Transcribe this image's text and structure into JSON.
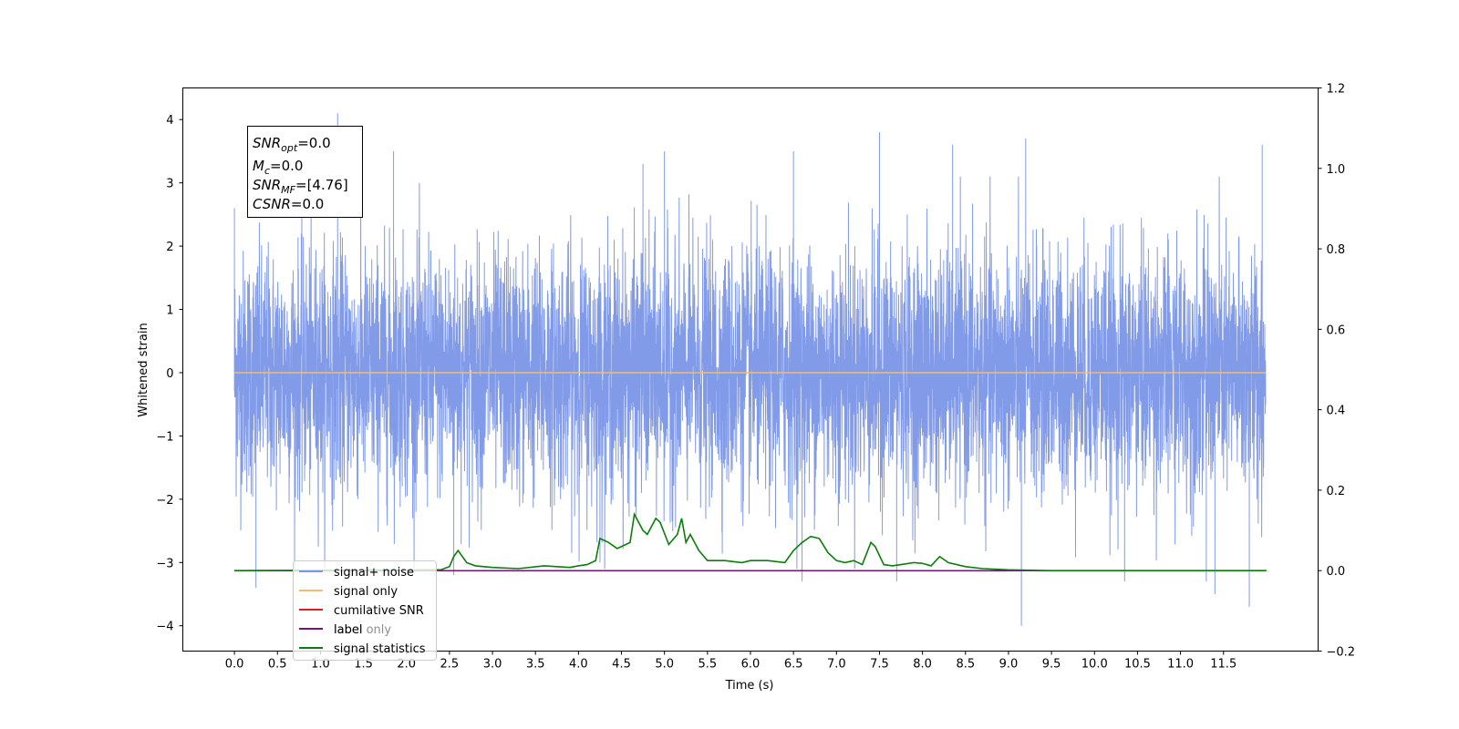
{
  "chart_data": {
    "type": "line",
    "xlabel": "Time (s)",
    "ylabel": "Whitened strain",
    "xlim": [
      -0.6,
      12.6
    ],
    "ylim": [
      -4.4,
      4.5
    ],
    "y2lim": [
      -0.2,
      1.2
    ],
    "xticks": [
      0.0,
      0.5,
      1.0,
      1.5,
      2.0,
      2.5,
      3.0,
      3.5,
      4.0,
      4.5,
      5.0,
      5.5,
      6.0,
      6.5,
      7.0,
      7.5,
      8.0,
      8.5,
      9.0,
      9.5,
      10.0,
      10.5,
      11.0,
      11.5
    ],
    "xtick_labels": [
      "0.0",
      "0.5",
      "1.0",
      "1.5",
      "2.0",
      "2.5",
      "3.0",
      "3.5",
      "4.0",
      "4.5",
      "5.0",
      "5.5",
      "6.0",
      "6.5",
      "7.0",
      "7.5",
      "8.0",
      "8.5",
      "9.0",
      "9.5",
      "10.0",
      "10.5",
      "11.0",
      "11.5"
    ],
    "yticks": [
      -4,
      -3,
      -2,
      -1,
      0,
      1,
      2,
      3,
      4
    ],
    "ytick_labels": [
      "−4",
      "−3",
      "−2",
      "−1",
      "0",
      "1",
      "2",
      "3",
      "4"
    ],
    "y2ticks": [
      -0.2,
      0.0,
      0.2,
      0.4,
      0.6,
      0.8,
      1.0,
      1.2
    ],
    "y2tick_labels": [
      "−0.2",
      "0.0",
      "0.2",
      "0.4",
      "0.6",
      "0.8",
      "1.0",
      "1.2"
    ],
    "grid": false,
    "legend_position": "lower-left",
    "annotation": {
      "lines": [
        {
          "sym": "SNR",
          "sub": "opt",
          "value": "=0.0"
        },
        {
          "sym": "M",
          "sub": "c",
          "value": "=0.0"
        },
        {
          "sym": "SNR",
          "sub": "MF",
          "value": "=[4.76]"
        },
        {
          "sym": "CSNR",
          "sub": "",
          "value": "=0.0"
        }
      ]
    },
    "series": [
      {
        "name": "signal+ noise",
        "axis": "left",
        "color": "#7b96e8",
        "kind": "noise",
        "x_range": [
          0.0,
          11.99
        ],
        "spikes": [
          [
            0.0,
            2.6
          ],
          [
            1.2,
            4.1
          ],
          [
            0.25,
            -3.4
          ],
          [
            9.15,
            -4.0
          ],
          [
            11.8,
            -3.7
          ],
          [
            7.5,
            3.8
          ],
          [
            9.2,
            3.7
          ],
          [
            11.95,
            3.6
          ],
          [
            5.0,
            3.5
          ],
          [
            8.35,
            3.6
          ],
          [
            4.75,
            3.3
          ],
          [
            6.5,
            3.5
          ],
          [
            6.6,
            -3.3
          ],
          [
            11.4,
            -3.5
          ],
          [
            11.3,
            -3.3
          ],
          [
            2.55,
            -3.2
          ],
          [
            7.7,
            -3.3
          ],
          [
            10.35,
            -3.3
          ],
          [
            4.25,
            -3.0
          ],
          [
            1.85,
            3.5
          ]
        ]
      },
      {
        "name": "signal only",
        "axis": "left",
        "color": "#f5b971",
        "kind": "constant",
        "x_range": [
          0.0,
          11.99
        ],
        "value": 0.0
      },
      {
        "name": "cumilative SNR",
        "axis": "right",
        "color": "#e41a1c",
        "kind": "constant",
        "x_range": [
          0.0,
          11.99
        ],
        "value": 0.0
      },
      {
        "name": "label",
        "axis": "right",
        "color": "#7b0f7b",
        "kind": "constant",
        "x_range": [
          0.0,
          11.99
        ],
        "value": 0.0
      },
      {
        "name": "label only",
        "axis": "right",
        "color": "#7b0f7b",
        "kind": "hidden"
      },
      {
        "name": "signal statistics",
        "axis": "right",
        "color": "#0a7d0a",
        "kind": "line",
        "x": [
          0.0,
          2.4,
          2.5,
          2.55,
          2.6,
          2.7,
          2.8,
          3.0,
          3.3,
          3.6,
          3.9,
          4.0,
          4.1,
          4.2,
          4.25,
          4.35,
          4.45,
          4.5,
          4.6,
          4.65,
          4.75,
          4.8,
          4.9,
          4.95,
          5.05,
          5.15,
          5.2,
          5.25,
          5.3,
          5.4,
          5.5,
          5.7,
          5.9,
          6.0,
          6.2,
          6.4,
          6.5,
          6.6,
          6.7,
          6.8,
          6.9,
          7.0,
          7.1,
          7.2,
          7.3,
          7.4,
          7.45,
          7.55,
          7.65,
          7.75,
          7.9,
          8.0,
          8.1,
          8.2,
          8.3,
          8.5,
          8.7,
          9.0,
          9.5,
          12.0
        ],
        "y": [
          0.0,
          0.002,
          0.01,
          0.035,
          0.05,
          0.02,
          0.012,
          0.008,
          0.005,
          0.012,
          0.008,
          0.012,
          0.015,
          0.025,
          0.08,
          0.07,
          0.055,
          0.06,
          0.07,
          0.14,
          0.1,
          0.09,
          0.13,
          0.12,
          0.065,
          0.09,
          0.13,
          0.07,
          0.09,
          0.05,
          0.025,
          0.025,
          0.02,
          0.025,
          0.025,
          0.02,
          0.05,
          0.07,
          0.085,
          0.08,
          0.045,
          0.025,
          0.02,
          0.025,
          0.015,
          0.07,
          0.06,
          0.015,
          0.012,
          0.015,
          0.02,
          0.018,
          0.012,
          0.035,
          0.02,
          0.01,
          0.005,
          0.002,
          0.0,
          0.0
        ]
      }
    ]
  }
}
